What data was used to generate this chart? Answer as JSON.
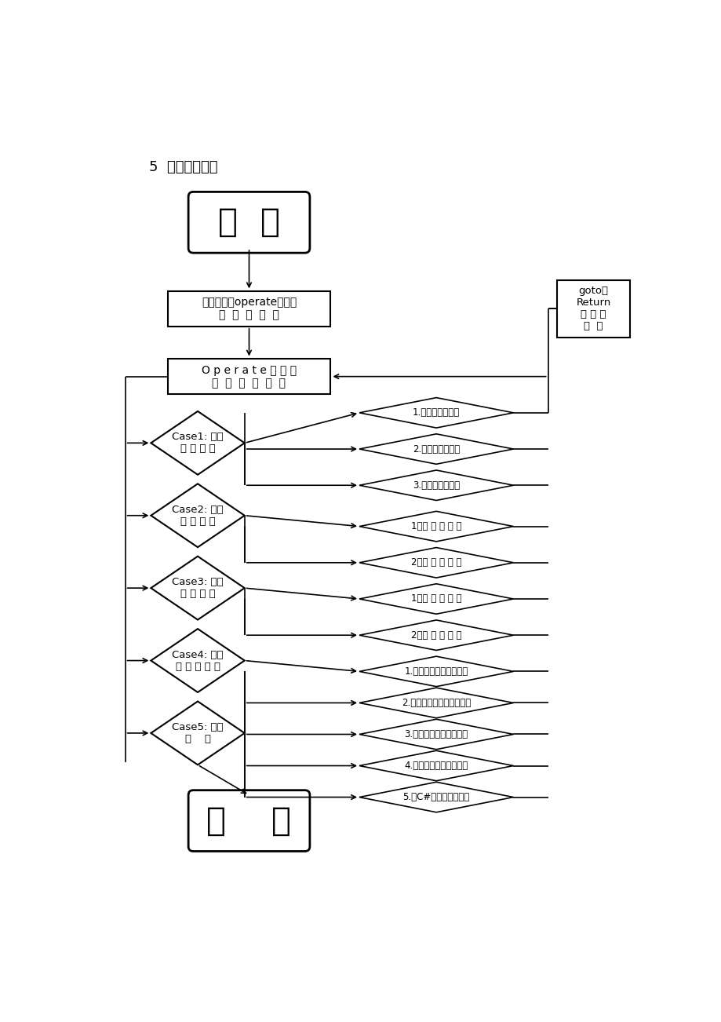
{
  "title": "5  程序流程图；",
  "bg_color": "#ffffff",
  "text_color": "#000000",
  "line_color": "#000000",
  "start_label": "开  始",
  "main_call_label": "主函数调用operate函数，\n开  始  主  程  序",
  "operate_label": "O p e r a t e 函 数 调\n用  各  个  小  菜  单",
  "goto_label": "goto：\nReturn\n返 回 主\n菜  单",
  "end_label": "结    束",
  "case_labels": [
    "Case1: 编写\n学 生 信 息",
    "Case2: 查看\n学 生 信 息",
    "Case3: 删除\n学 生 信 息",
    "Case4: 生成\n学 生 成 绩 单",
    "Case5: 安全\n退    出"
  ],
  "sub_diamonds": [
    "1.添加学生信息。",
    "2.插入学生信息。",
    "3.修改学生信息。",
    "1．按 学 号 查 询",
    "2．按 姓 名 查 询",
    "1．按 学 号 删 除",
    "2．按 姓 名 删 除",
    "1.按录入顺序输出成绩单",
    "2.按总成绩排序输出成绩单",
    "3.按英语成绩输出成绩单",
    "4.按数学成绩输出成绩单",
    "5.按C#成绩输出成绩单"
  ]
}
